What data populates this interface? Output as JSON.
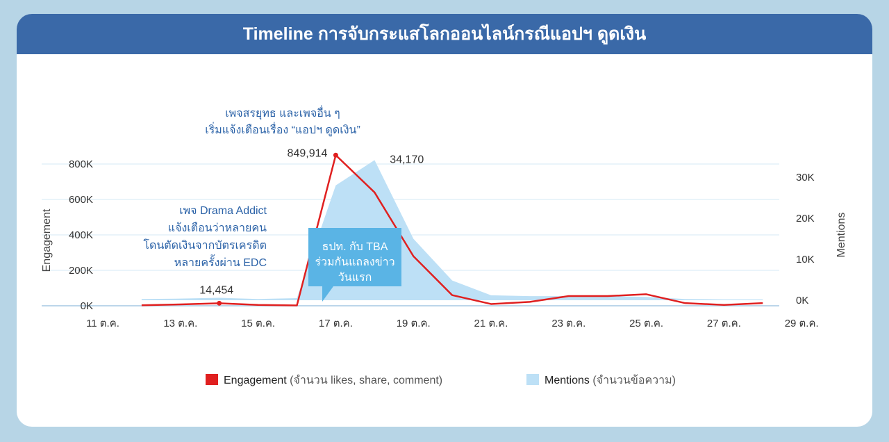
{
  "header": {
    "title": "Timeline การจับกระแสโลกออนไลน์กรณีแอปฯ ดูดเงิน"
  },
  "chart_data": {
    "type": "line",
    "title": "Timeline การจับกระแสโลกออนไลน์กรณีแอปฯ ดูดเงิน",
    "x_tick_labels": [
      "11 ต.ค.",
      "13 ต.ค.",
      "15 ต.ค.",
      "17 ต.ค.",
      "19 ต.ค.",
      "21 ต.ค.",
      "23 ต.ค.",
      "25 ต.ค.",
      "27 ต.ค.",
      "29 ต.ค."
    ],
    "y_left": {
      "label": "Engagement",
      "ticks": [
        "0K",
        "200K",
        "400K",
        "600K",
        "800K"
      ],
      "range": [
        0,
        800000
      ]
    },
    "y_right": {
      "label": "Mentions",
      "ticks": [
        "0K",
        "10K",
        "20K",
        "30K"
      ],
      "range": [
        0,
        30000
      ]
    },
    "series": [
      {
        "name": "Mentions",
        "type": "area",
        "axis": "right",
        "color": "#bde0f6",
        "x": [
          "12 ต.ค.",
          "13 ต.ค.",
          "14 ต.ค.",
          "15 ต.ค.",
          "16 ต.ค.",
          "17 ต.ค.",
          "18 ต.ค.",
          "19 ต.ค.",
          "20 ต.ค.",
          "21 ต.ค.",
          "22 ต.ค.",
          "23 ต.ค.",
          "24 ต.ค.",
          "25 ต.ค.",
          "26 ต.ค.",
          "27 ต.ค.",
          "28 ต.ค."
        ],
        "values": [
          300,
          400,
          600,
          300,
          500,
          28000,
          34170,
          15000,
          4800,
          1200,
          1000,
          1000,
          1000,
          800,
          300,
          200,
          200
        ]
      },
      {
        "name": "Engagement",
        "type": "line",
        "axis": "left",
        "color": "#e02020",
        "x": [
          "12 ต.ค.",
          "13 ต.ค.",
          "14 ต.ค.",
          "15 ต.ค.",
          "16 ต.ค.",
          "17 ต.ค.",
          "18 ต.ค.",
          "19 ต.ค.",
          "20 ต.ค.",
          "21 ต.ค.",
          "22 ต.ค.",
          "23 ต.ค.",
          "24 ต.ค.",
          "25 ต.ค.",
          "26 ต.ค.",
          "27 ต.ค.",
          "28 ต.ค."
        ],
        "values": [
          3000,
          8000,
          14454,
          5000,
          2000,
          849914,
          640000,
          280000,
          60000,
          10000,
          22000,
          55000,
          55000,
          65000,
          15000,
          5000,
          15000
        ]
      }
    ],
    "value_labels": {
      "engagement_peak": "849,914",
      "mentions_peak": "34,170",
      "engagement_low": "14,454"
    },
    "annotations": {
      "top": [
        "เพจสรยุทธ และเพจอื่น ๆ",
        "เริ่มแจ้งเตือนเรื่อง “แอปฯ ดูดเงิน”"
      ],
      "left": [
        "เพจ  Drama Addict",
        "แจ้งเตือนว่าหลายคน",
        "โดนตัดเงินจากบัตรเครดิต",
        "หลายครั้งผ่าน EDC"
      ],
      "callout": [
        "ธปท. กับ TBA",
        "ร่วมกันแถลงข่าว",
        "วันแรก"
      ]
    },
    "legend": {
      "placement": "bottom",
      "engagement_name": "Engagement",
      "engagement_desc": " (จำนวน likes, share, comment)",
      "mentions_name": "Mentions",
      "mentions_desc": " (จำนวนข้อความ)"
    },
    "grid": true,
    "callout_color": "#5ab4e5"
  }
}
